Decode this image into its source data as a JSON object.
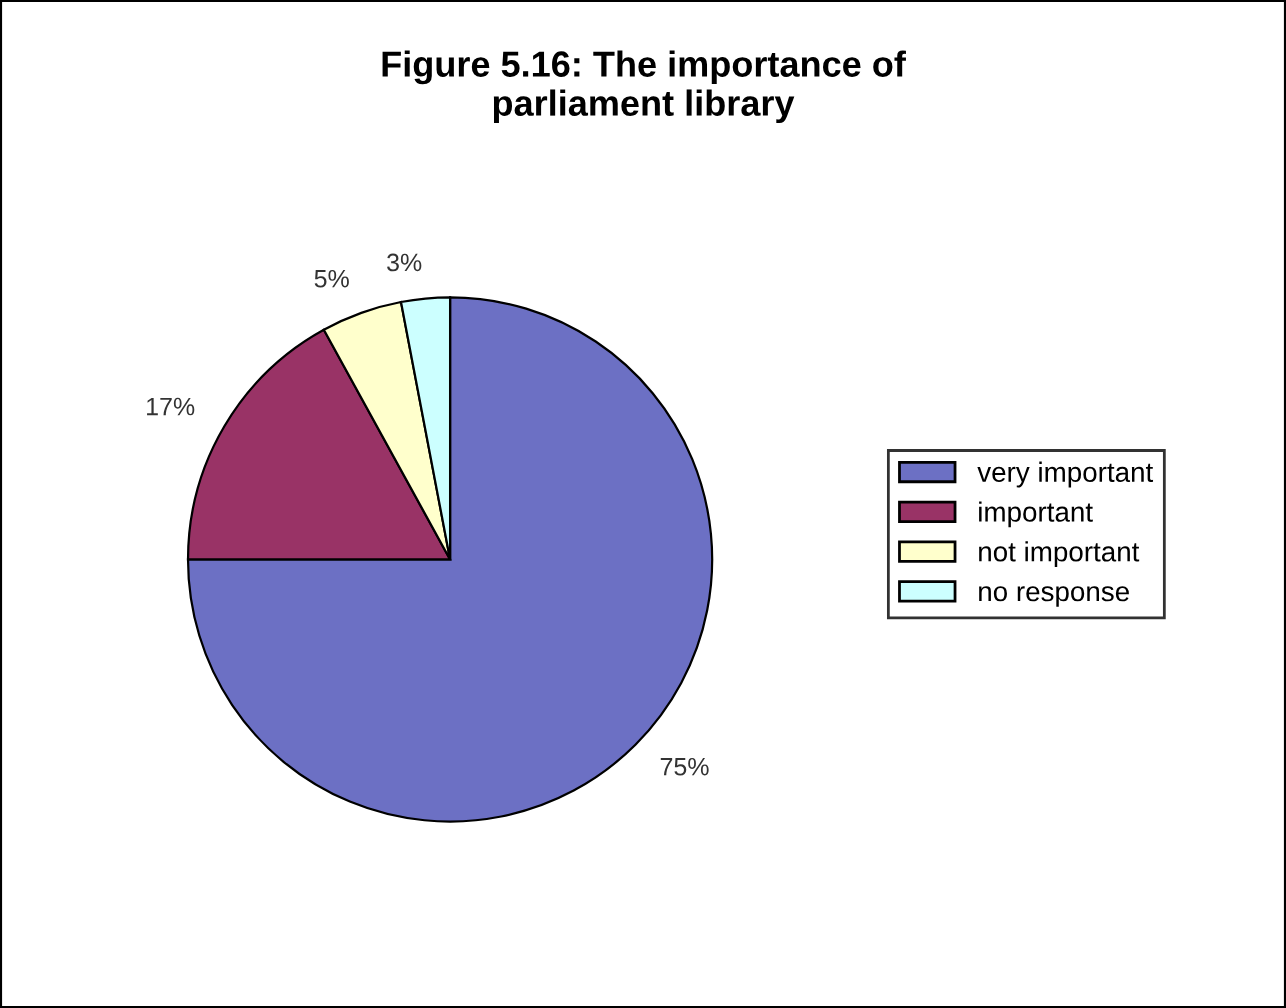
{
  "chart_data": {
    "type": "pie",
    "title": "Figure 5.16: The importance of\nparliament library",
    "categories": [
      "very important",
      "important",
      "not important",
      "no response"
    ],
    "values": [
      75,
      17,
      5,
      3
    ],
    "value_labels": [
      "75%",
      "17%",
      "5%",
      "3%"
    ],
    "colors": [
      "#6c70c4",
      "#993366",
      "#ffffcc",
      "#ccffff"
    ],
    "legend": "right"
  }
}
